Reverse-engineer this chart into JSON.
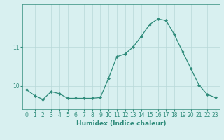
{
  "xlabel": "Humidex (Indice chaleur)",
  "ylabel": "",
  "x_values": [
    0,
    1,
    2,
    3,
    4,
    5,
    6,
    7,
    8,
    9,
    10,
    11,
    12,
    13,
    14,
    15,
    16,
    17,
    18,
    19,
    20,
    21,
    22,
    23
  ],
  "y_values": [
    9.9,
    9.75,
    9.65,
    9.85,
    9.8,
    9.68,
    9.68,
    9.68,
    9.68,
    9.7,
    10.2,
    10.75,
    10.82,
    11.0,
    11.28,
    11.58,
    11.72,
    11.68,
    11.32,
    10.88,
    10.45,
    10.02,
    9.78,
    9.7
  ],
  "line_color": "#2e8b7a",
  "marker": "D",
  "marker_size": 2.0,
  "bg_color": "#d8f0f0",
  "grid_color": "#b8d8d8",
  "grid_linestyle": "-",
  "tick_color": "#2e8b7a",
  "label_color": "#2e8b7a",
  "yticks": [
    10,
    11
  ],
  "ylim": [
    9.4,
    12.1
  ],
  "xlim": [
    -0.5,
    23.5
  ],
  "xlabel_fontsize": 6.5,
  "tick_fontsize": 5.5,
  "linewidth": 0.9
}
